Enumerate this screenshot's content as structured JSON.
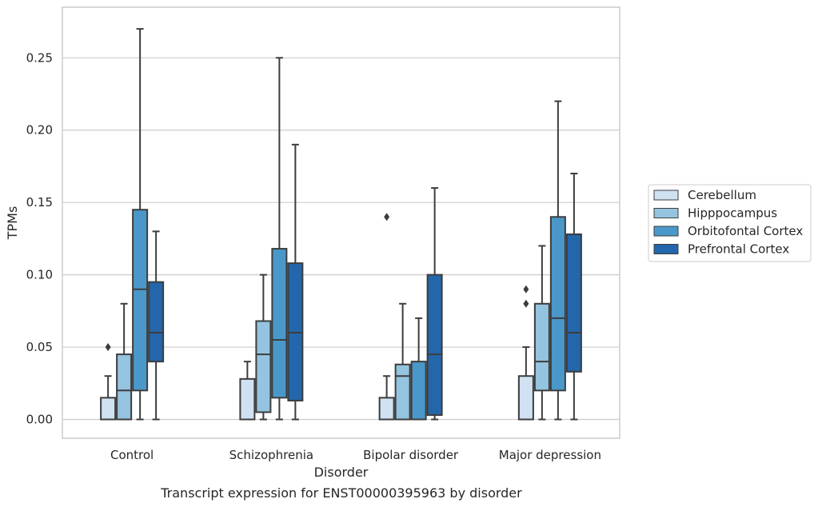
{
  "chart_data": {
    "type": "box",
    "caption": "Transcript expression for ENST00000395963 by disorder",
    "xlabel": "Disorder",
    "ylabel": "TPMs",
    "ylim": [
      -0.013,
      0.285
    ],
    "yticks": [
      0.0,
      0.05,
      0.1,
      0.15,
      0.2,
      0.25
    ],
    "ytick_labels": [
      "0.00",
      "0.05",
      "0.10",
      "0.15",
      "0.20",
      "0.25"
    ],
    "grid": "horizontal",
    "legend_position": "right",
    "categories": [
      "Control",
      "Schizophrenia",
      "Bipolar disorder",
      "Major depression"
    ],
    "series": [
      {
        "name": "Cerebellum",
        "color": "#d0e1f2",
        "boxes": [
          {
            "whisker_low": 0.0,
            "q1": 0.0,
            "median": 0.0,
            "q3": 0.015,
            "whisker_high": 0.03,
            "outliers": [
              0.05
            ]
          },
          {
            "whisker_low": 0.0,
            "q1": 0.0,
            "median": 0.0,
            "q3": 0.028,
            "whisker_high": 0.04,
            "outliers": []
          },
          {
            "whisker_low": 0.0,
            "q1": 0.0,
            "median": 0.0,
            "q3": 0.015,
            "whisker_high": 0.03,
            "outliers": [
              0.14
            ]
          },
          {
            "whisker_low": 0.0,
            "q1": 0.0,
            "median": 0.0,
            "q3": 0.03,
            "whisker_high": 0.05,
            "outliers": [
              0.08,
              0.09
            ]
          }
        ]
      },
      {
        "name": "Hipppocampus",
        "color": "#94c4df",
        "boxes": [
          {
            "whisker_low": 0.0,
            "q1": 0.0,
            "median": 0.02,
            "q3": 0.045,
            "whisker_high": 0.08,
            "outliers": []
          },
          {
            "whisker_low": 0.0,
            "q1": 0.005,
            "median": 0.045,
            "q3": 0.068,
            "whisker_high": 0.1,
            "outliers": []
          },
          {
            "whisker_low": 0.0,
            "q1": 0.0,
            "median": 0.03,
            "q3": 0.038,
            "whisker_high": 0.08,
            "outliers": []
          },
          {
            "whisker_low": 0.0,
            "q1": 0.02,
            "median": 0.04,
            "q3": 0.08,
            "whisker_high": 0.12,
            "outliers": []
          }
        ]
      },
      {
        "name": "Orbitofontal Cortex",
        "color": "#4a98c9",
        "boxes": [
          {
            "whisker_low": 0.0,
            "q1": 0.02,
            "median": 0.09,
            "q3": 0.145,
            "whisker_high": 0.27,
            "outliers": []
          },
          {
            "whisker_low": 0.0,
            "q1": 0.015,
            "median": 0.055,
            "q3": 0.118,
            "whisker_high": 0.25,
            "outliers": []
          },
          {
            "whisker_low": 0.0,
            "q1": 0.0,
            "median": 0.0,
            "q3": 0.04,
            "whisker_high": 0.07,
            "outliers": []
          },
          {
            "whisker_low": 0.0,
            "q1": 0.02,
            "median": 0.07,
            "q3": 0.14,
            "whisker_high": 0.22,
            "outliers": []
          }
        ]
      },
      {
        "name": "Prefrontal Cortex",
        "color": "#2366ab",
        "boxes": [
          {
            "whisker_low": 0.0,
            "q1": 0.04,
            "median": 0.06,
            "q3": 0.095,
            "whisker_high": 0.13,
            "outliers": []
          },
          {
            "whisker_low": 0.0,
            "q1": 0.013,
            "median": 0.06,
            "q3": 0.108,
            "whisker_high": 0.19,
            "outliers": []
          },
          {
            "whisker_low": 0.0,
            "q1": 0.003,
            "median": 0.045,
            "q3": 0.1,
            "whisker_high": 0.16,
            "outliers": []
          },
          {
            "whisker_low": 0.0,
            "q1": 0.033,
            "median": 0.06,
            "q3": 0.128,
            "whisker_high": 0.17,
            "outliers": []
          }
        ]
      }
    ]
  }
}
